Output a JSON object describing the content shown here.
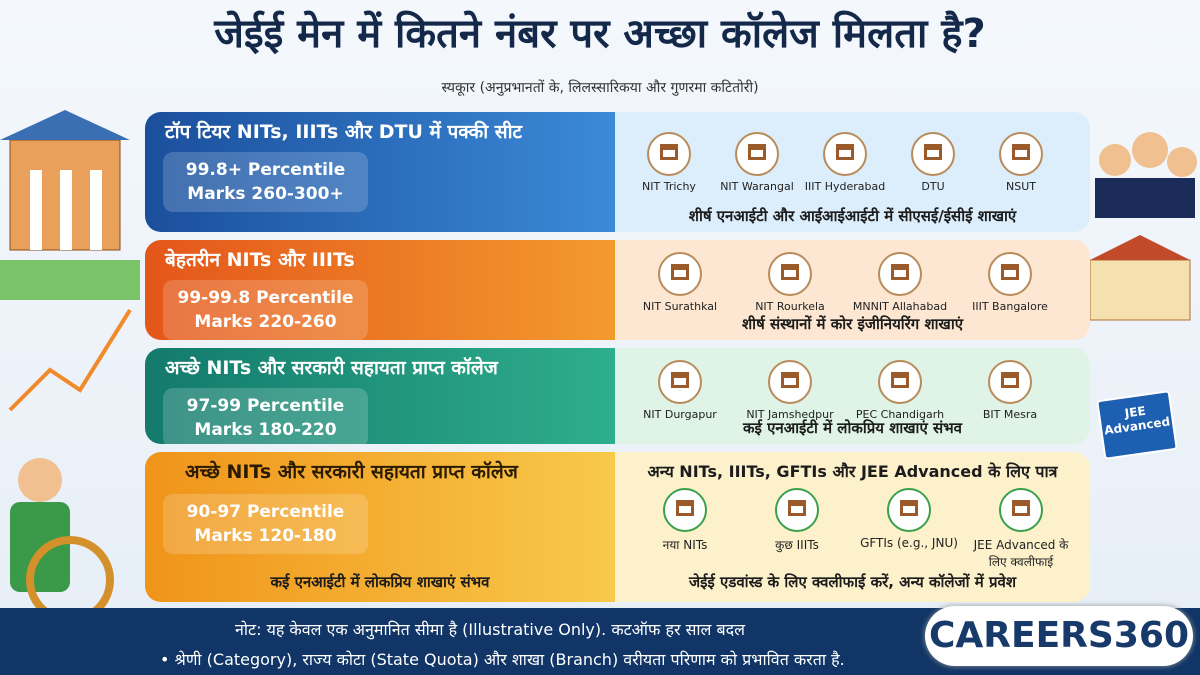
{
  "header": {
    "title": "जेईई मेन में कितने नंबर पर अच्छा कॉलेज मिलता है?",
    "subtitle": "स्यकूार (अनुप्रभानतों के, लिलस्सारिकया और गुणरमा कटितोरी)"
  },
  "tiers": [
    {
      "heading": "टॉप टियर NITs, IIITs और DTU में पक्की सीट",
      "percentile": "99.8+ Percentile",
      "marks": "Marks 260-300+",
      "colleges": [
        "NIT Trichy",
        "NIT Warangal",
        "IIIT Hyderabad",
        "DTU",
        "NSUT"
      ],
      "note": "शीर्ष एनआईटी और आईआईआईटी में सीएसई/ईसीई शाखाएं"
    },
    {
      "heading": "बेहतरीन NITs और IIITs",
      "percentile": "99-99.8 Percentile",
      "marks": "Marks 220-260",
      "colleges": [
        "NIT Surathkal",
        "NIT Rourkela",
        "MNNIT Allahabad",
        "IIIT Bangalore"
      ],
      "note": "शीर्ष संस्थानों में कोर इंजीनियरिंग शाखाएं"
    },
    {
      "heading": "अच्छे NITs और सरकारी सहायता प्राप्त कॉलेज",
      "percentile": "97-99 Percentile",
      "marks": "Marks 180-220",
      "colleges": [
        "NIT Durgapur",
        "NIT Jamshedpur",
        "PEC Chandigarh",
        "BIT Mesra"
      ],
      "note": "कई एनआईटी में लोकप्रिय शाखाएं संभव"
    },
    {
      "heading": "अच्छे NITs और सरकारी सहायता प्राप्त कॉलेज",
      "percentile": "90-97 Percentile",
      "marks": "Marks 120-180",
      "note": "कई एनआईटी में लोकप्रिय शाखाएं संभव"
    }
  ],
  "eligibility": {
    "heading": "अन्य NITs, IIITs, GFTIs और JEE Advanced के लिए पात्र",
    "items": [
      "नया NITs",
      "कुछ IIITs",
      "GFTIs (e.g., JNU)",
      "JEE Advanced के लिए क्वलीफाई"
    ],
    "note": "जेईई एडवांस्ड के लिए क्वलीफाई करें, अन्य कॉलेजों में प्रवेश"
  },
  "footer": {
    "note": "नोट: यह केवल एक अनुमानित सीमा है (Illustrative Only). कटऑफ हर साल बदल",
    "bullet": "• श्रेणी (Category), राज्य कोटा (State Quota) और शाखा (Branch) वरीयता परिणाम को प्रभावित करता है."
  },
  "sign": "JEE Advanced",
  "logo": {
    "text": "CAREERS",
    "number": "360"
  }
}
